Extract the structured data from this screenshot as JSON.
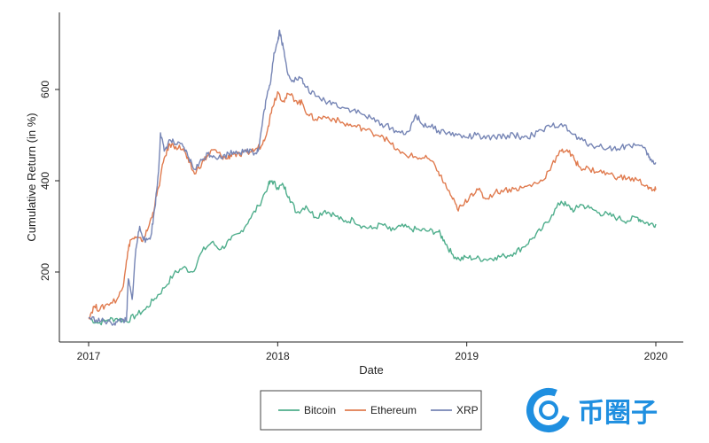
{
  "chart_data": {
    "type": "line",
    "title": "",
    "xlabel": "Date",
    "ylabel": "Cumulative Return (in %)",
    "xlim": [
      2017,
      2020
    ],
    "ylim": [
      70,
      740
    ],
    "x_ticks": [
      2017,
      2018,
      2019,
      2020
    ],
    "x_tick_labels": [
      "2017",
      "2018",
      "2019",
      "2020"
    ],
    "y_ticks": [
      200,
      400,
      600
    ],
    "y_tick_labels": [
      "200",
      "400",
      "600"
    ],
    "grid": false,
    "legend_position": "bottom",
    "series": [
      {
        "name": "Bitcoin",
        "color": "#4fae8c",
        "points": [
          [
            2017.0,
            100
          ],
          [
            2017.05,
            88
          ],
          [
            2017.1,
            95
          ],
          [
            2017.15,
            98
          ],
          [
            2017.2,
            92
          ],
          [
            2017.25,
            105
          ],
          [
            2017.3,
            118
          ],
          [
            2017.35,
            142
          ],
          [
            2017.4,
            165
          ],
          [
            2017.45,
            195
          ],
          [
            2017.5,
            210
          ],
          [
            2017.55,
            200
          ],
          [
            2017.6,
            245
          ],
          [
            2017.65,
            265
          ],
          [
            2017.7,
            250
          ],
          [
            2017.75,
            270
          ],
          [
            2017.8,
            285
          ],
          [
            2017.85,
            315
          ],
          [
            2017.9,
            345
          ],
          [
            2017.95,
            390
          ],
          [
            2017.97,
            400
          ],
          [
            2018.0,
            385
          ],
          [
            2018.03,
            390
          ],
          [
            2018.06,
            365
          ],
          [
            2018.1,
            330
          ],
          [
            2018.15,
            345
          ],
          [
            2018.2,
            320
          ],
          [
            2018.25,
            335
          ],
          [
            2018.3,
            325
          ],
          [
            2018.35,
            310
          ],
          [
            2018.4,
            315
          ],
          [
            2018.45,
            300
          ],
          [
            2018.5,
            295
          ],
          [
            2018.55,
            305
          ],
          [
            2018.6,
            290
          ],
          [
            2018.65,
            300
          ],
          [
            2018.7,
            295
          ],
          [
            2018.75,
            292
          ],
          [
            2018.8,
            290
          ],
          [
            2018.85,
            288
          ],
          [
            2018.88,
            270
          ],
          [
            2018.92,
            240
          ],
          [
            2018.96,
            228
          ],
          [
            2019.0,
            232
          ],
          [
            2019.05,
            230
          ],
          [
            2019.1,
            228
          ],
          [
            2019.15,
            232
          ],
          [
            2019.2,
            235
          ],
          [
            2019.25,
            242
          ],
          [
            2019.3,
            255
          ],
          [
            2019.35,
            275
          ],
          [
            2019.4,
            295
          ],
          [
            2019.45,
            325
          ],
          [
            2019.5,
            355
          ],
          [
            2019.53,
            345
          ],
          [
            2019.57,
            335
          ],
          [
            2019.6,
            348
          ],
          [
            2019.65,
            340
          ],
          [
            2019.7,
            330
          ],
          [
            2019.75,
            325
          ],
          [
            2019.8,
            318
          ],
          [
            2019.85,
            312
          ],
          [
            2019.9,
            320
          ],
          [
            2019.93,
            312
          ],
          [
            2019.97,
            305
          ],
          [
            2020.0,
            305
          ]
        ]
      },
      {
        "name": "Ethereum",
        "color": "#e07b4f",
        "points": [
          [
            2017.0,
            100
          ],
          [
            2017.03,
            125
          ],
          [
            2017.06,
            118
          ],
          [
            2017.1,
            130
          ],
          [
            2017.15,
            140
          ],
          [
            2017.18,
            165
          ],
          [
            2017.2,
            225
          ],
          [
            2017.22,
            270
          ],
          [
            2017.25,
            275
          ],
          [
            2017.28,
            268
          ],
          [
            2017.31,
            290
          ],
          [
            2017.34,
            330
          ],
          [
            2017.37,
            385
          ],
          [
            2017.4,
            450
          ],
          [
            2017.43,
            480
          ],
          [
            2017.46,
            475
          ],
          [
            2017.5,
            470
          ],
          [
            2017.53,
            440
          ],
          [
            2017.56,
            415
          ],
          [
            2017.6,
            440
          ],
          [
            2017.63,
            455
          ],
          [
            2017.66,
            468
          ],
          [
            2017.7,
            455
          ],
          [
            2017.73,
            448
          ],
          [
            2017.76,
            460
          ],
          [
            2017.8,
            455
          ],
          [
            2017.84,
            462
          ],
          [
            2017.88,
            468
          ],
          [
            2017.92,
            480
          ],
          [
            2017.95,
            520
          ],
          [
            2017.97,
            560
          ],
          [
            2018.0,
            595
          ],
          [
            2018.03,
            575
          ],
          [
            2018.06,
            590
          ],
          [
            2018.1,
            575
          ],
          [
            2018.13,
            570
          ],
          [
            2018.16,
            545
          ],
          [
            2018.2,
            535
          ],
          [
            2018.25,
            540
          ],
          [
            2018.3,
            535
          ],
          [
            2018.35,
            525
          ],
          [
            2018.4,
            520
          ],
          [
            2018.45,
            515
          ],
          [
            2018.5,
            505
          ],
          [
            2018.55,
            500
          ],
          [
            2018.6,
            480
          ],
          [
            2018.65,
            460
          ],
          [
            2018.7,
            455
          ],
          [
            2018.75,
            450
          ],
          [
            2018.8,
            448
          ],
          [
            2018.85,
            420
          ],
          [
            2018.88,
            395
          ],
          [
            2018.92,
            365
          ],
          [
            2018.95,
            338
          ],
          [
            2018.98,
            345
          ],
          [
            2019.02,
            370
          ],
          [
            2019.06,
            380
          ],
          [
            2019.1,
            360
          ],
          [
            2019.15,
            375
          ],
          [
            2019.2,
            380
          ],
          [
            2019.25,
            382
          ],
          [
            2019.3,
            385
          ],
          [
            2019.35,
            392
          ],
          [
            2019.4,
            400
          ],
          [
            2019.45,
            435
          ],
          [
            2019.5,
            465
          ],
          [
            2019.53,
            468
          ],
          [
            2019.57,
            445
          ],
          [
            2019.6,
            430
          ],
          [
            2019.65,
            425
          ],
          [
            2019.7,
            420
          ],
          [
            2019.75,
            415
          ],
          [
            2019.8,
            408
          ],
          [
            2019.85,
            405
          ],
          [
            2019.9,
            402
          ],
          [
            2019.95,
            390
          ],
          [
            2019.98,
            378
          ],
          [
            2020.0,
            380
          ]
        ]
      },
      {
        "name": "XRP",
        "color": "#7685b5",
        "points": [
          [
            2017.0,
            100
          ],
          [
            2017.04,
            95
          ],
          [
            2017.08,
            92
          ],
          [
            2017.12,
            88
          ],
          [
            2017.15,
            90
          ],
          [
            2017.18,
            96
          ],
          [
            2017.2,
            92
          ],
          [
            2017.21,
            185
          ],
          [
            2017.23,
            140
          ],
          [
            2017.25,
            250
          ],
          [
            2017.27,
            300
          ],
          [
            2017.3,
            265
          ],
          [
            2017.33,
            280
          ],
          [
            2017.35,
            340
          ],
          [
            2017.37,
            420
          ],
          [
            2017.38,
            505
          ],
          [
            2017.4,
            465
          ],
          [
            2017.43,
            490
          ],
          [
            2017.46,
            480
          ],
          [
            2017.5,
            475
          ],
          [
            2017.53,
            450
          ],
          [
            2017.56,
            425
          ],
          [
            2017.6,
            445
          ],
          [
            2017.63,
            460
          ],
          [
            2017.66,
            455
          ],
          [
            2017.7,
            450
          ],
          [
            2017.74,
            460
          ],
          [
            2017.78,
            465
          ],
          [
            2017.82,
            462
          ],
          [
            2017.86,
            468
          ],
          [
            2017.88,
            460
          ],
          [
            2017.9,
            470
          ],
          [
            2017.92,
            530
          ],
          [
            2017.94,
            580
          ],
          [
            2017.96,
            610
          ],
          [
            2017.98,
            680
          ],
          [
            2018.0,
            705
          ],
          [
            2018.01,
            730
          ],
          [
            2018.03,
            690
          ],
          [
            2018.05,
            640
          ],
          [
            2018.08,
            620
          ],
          [
            2018.12,
            625
          ],
          [
            2018.15,
            605
          ],
          [
            2018.2,
            585
          ],
          [
            2018.25,
            575
          ],
          [
            2018.3,
            570
          ],
          [
            2018.35,
            560
          ],
          [
            2018.4,
            555
          ],
          [
            2018.45,
            545
          ],
          [
            2018.5,
            535
          ],
          [
            2018.55,
            525
          ],
          [
            2018.6,
            515
          ],
          [
            2018.65,
            505
          ],
          [
            2018.7,
            510
          ],
          [
            2018.73,
            545
          ],
          [
            2018.76,
            525
          ],
          [
            2018.8,
            520
          ],
          [
            2018.85,
            510
          ],
          [
            2018.9,
            505
          ],
          [
            2018.95,
            500
          ],
          [
            2019.0,
            495
          ],
          [
            2019.05,
            500
          ],
          [
            2019.1,
            492
          ],
          [
            2019.15,
            495
          ],
          [
            2019.2,
            498
          ],
          [
            2019.25,
            500
          ],
          [
            2019.3,
            495
          ],
          [
            2019.35,
            500
          ],
          [
            2019.4,
            510
          ],
          [
            2019.45,
            520
          ],
          [
            2019.5,
            525
          ],
          [
            2019.55,
            505
          ],
          [
            2019.6,
            490
          ],
          [
            2019.65,
            480
          ],
          [
            2019.7,
            475
          ],
          [
            2019.75,
            472
          ],
          [
            2019.8,
            470
          ],
          [
            2019.85,
            478
          ],
          [
            2019.9,
            478
          ],
          [
            2019.95,
            465
          ],
          [
            2019.97,
            445
          ],
          [
            2020.0,
            440
          ]
        ]
      }
    ]
  },
  "watermark": {
    "text": "币圈子",
    "icon": "coin-c-logo-icon",
    "color": "#1f8fe0"
  }
}
